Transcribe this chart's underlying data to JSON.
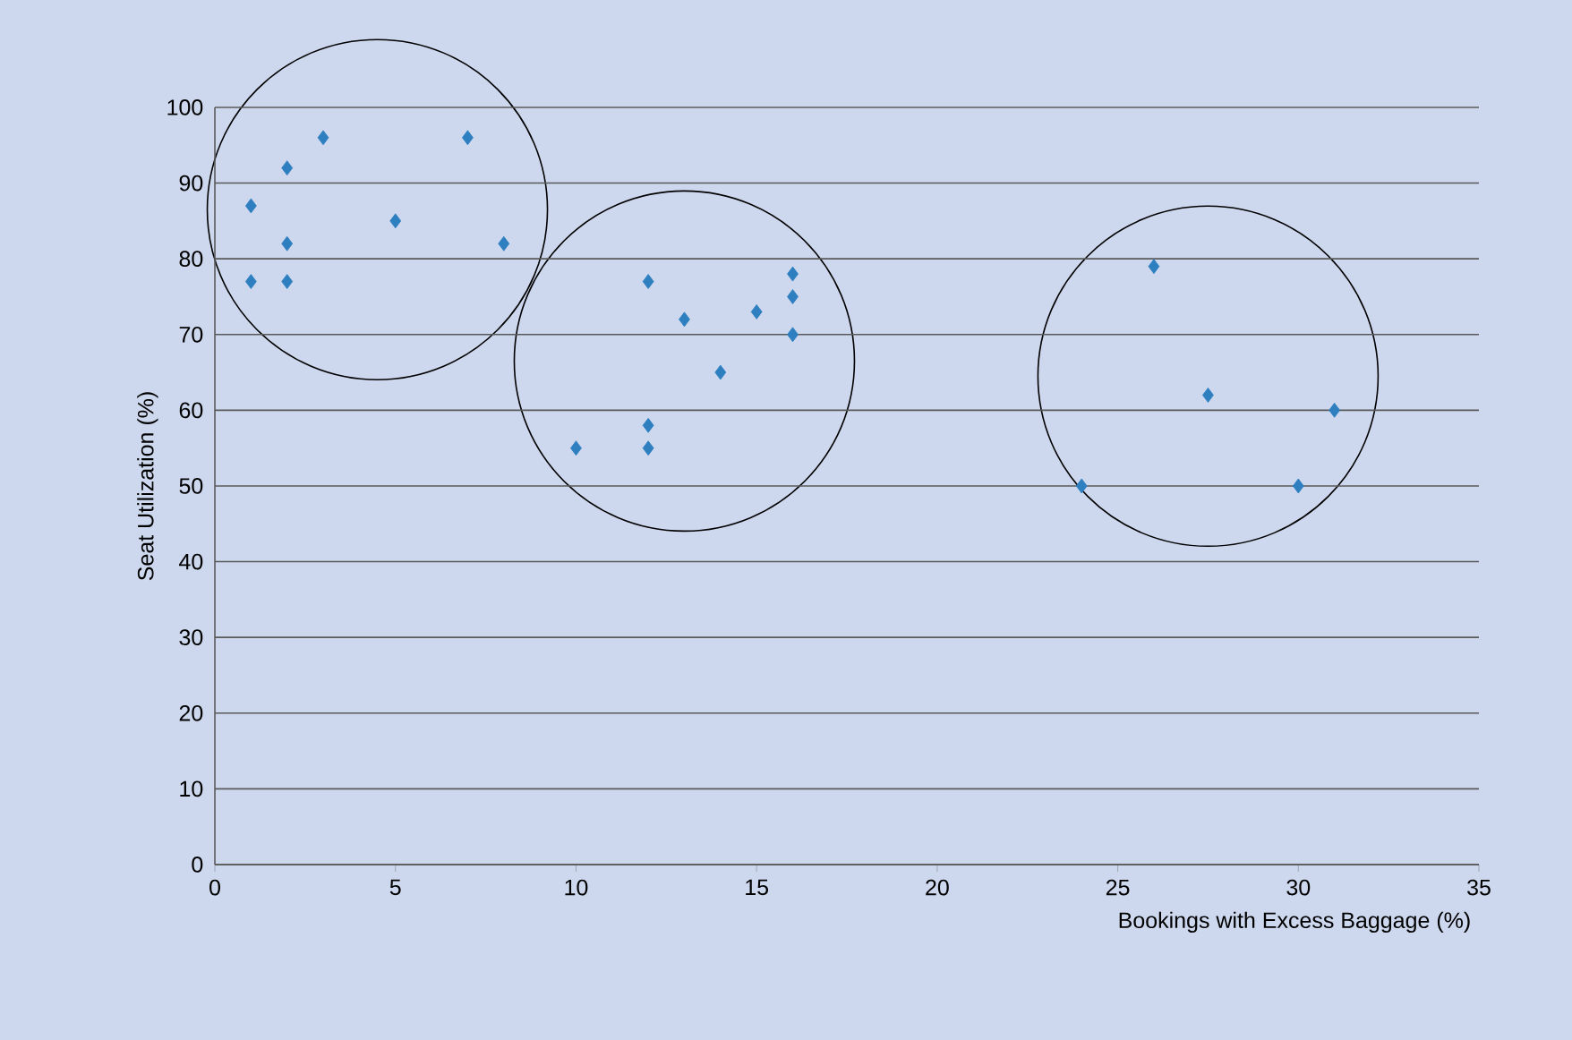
{
  "chart_data": {
    "type": "scatter",
    "xlabel": "Bookings with Excess Baggage (%)",
    "ylabel": "Seat Utilization (%)",
    "xlim": [
      0,
      35
    ],
    "ylim": [
      0,
      100
    ],
    "xticks": [
      0,
      5,
      10,
      15,
      20,
      25,
      30,
      35
    ],
    "yticks": [
      0,
      10,
      20,
      30,
      40,
      50,
      60,
      70,
      80,
      90,
      100
    ],
    "grid": "y",
    "marker": "diamond",
    "series": [
      {
        "color": "#2e7fc0",
        "x": [
          1,
          1,
          2,
          2,
          2,
          3,
          5,
          7,
          8
        ],
        "values": [
          87,
          77,
          92,
          82,
          77,
          96,
          85,
          96,
          82
        ]
      },
      {
        "color": "#2e7fc0",
        "x": [
          10,
          12,
          12,
          12,
          13,
          14,
          15,
          16,
          16,
          16
        ],
        "values": [
          55,
          77,
          58,
          55,
          72,
          65,
          73,
          78,
          75,
          70
        ]
      },
      {
        "color": "#2e7fc0",
        "x": [
          24,
          26,
          27.5,
          30,
          31
        ],
        "values": [
          50,
          79,
          62,
          50,
          60
        ]
      }
    ]
  }
}
